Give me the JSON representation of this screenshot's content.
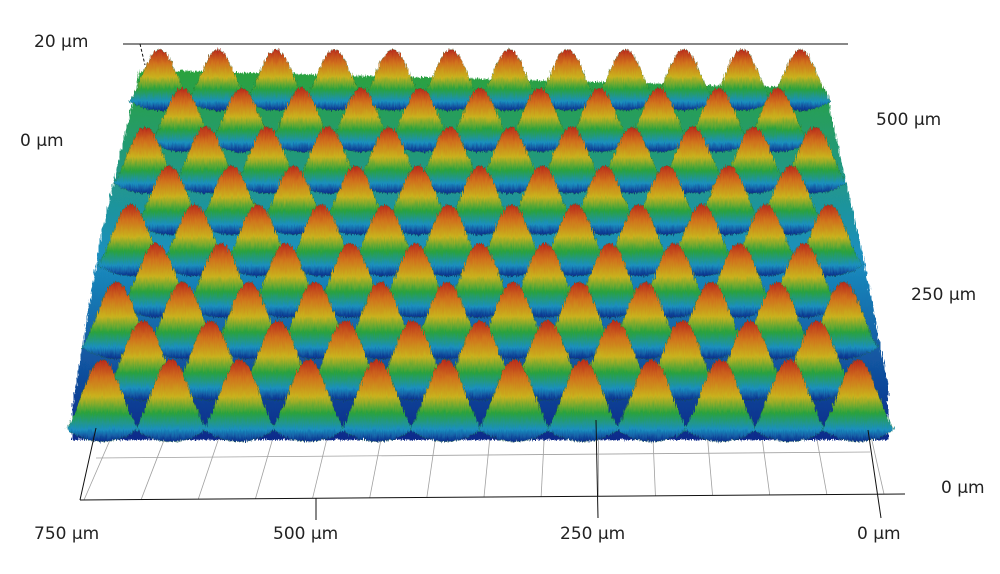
{
  "axes": {
    "z": {
      "unit_label_top": "20 µm",
      "unit_label_zero": "0 µm"
    },
    "y": {
      "labels": [
        "500 µm",
        "250 µm",
        "0 µm"
      ]
    },
    "x": {
      "labels": [
        "750 µm",
        "500 µm",
        "250 µm",
        "0 µm"
      ]
    }
  },
  "colors": {
    "valley": "#0b2a8a",
    "low": "#1d8fc8",
    "mid": "#22b14c",
    "high": "#d8b21a",
    "peak": "#c0391b",
    "grid": "#9a9a9a",
    "axis": "#111111"
  }
}
